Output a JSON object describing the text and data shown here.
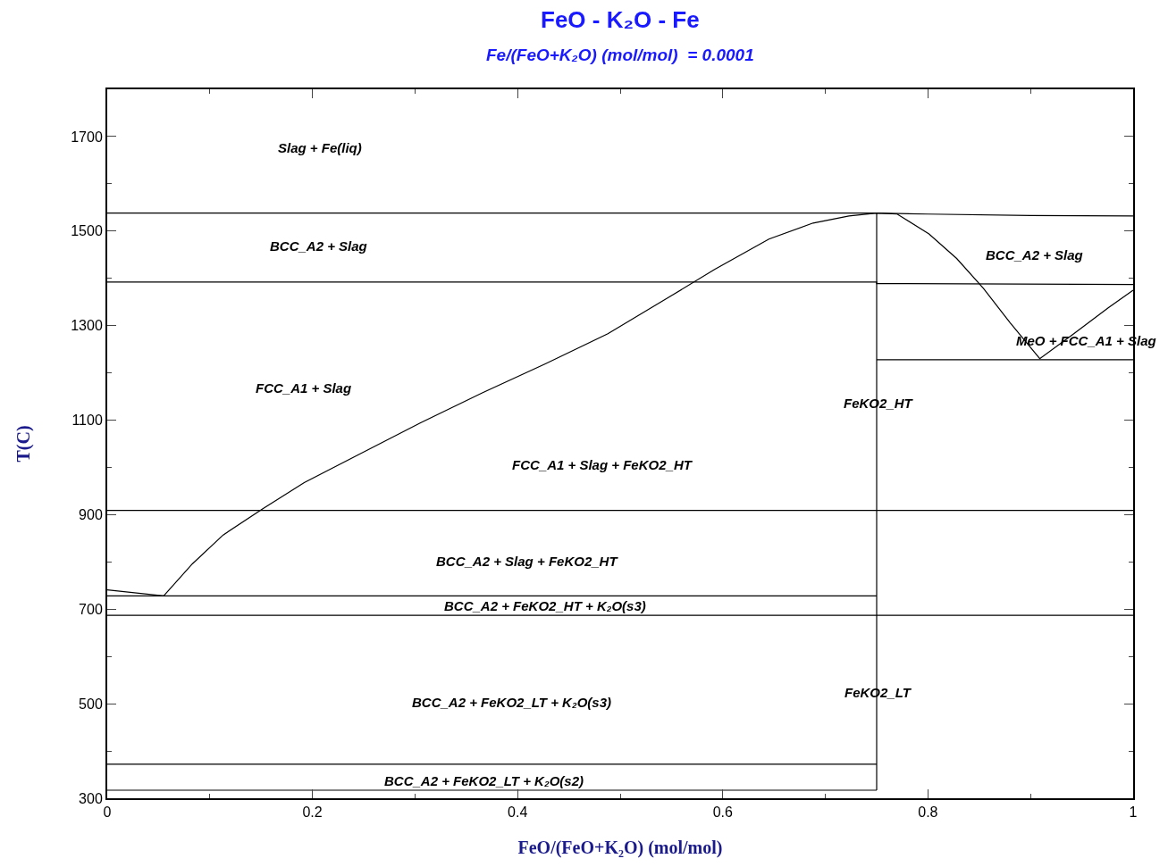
{
  "chart_data": {
    "type": "line",
    "title": "FeO - K₂O - Fe",
    "subtitle": "Fe/(FeO+K₂O) (mol/mol)  = 0.0001",
    "xlabel": "FeO/(FeO+K₂O) (mol/mol)",
    "ylabel": "T(C)",
    "xlim": [
      0,
      1
    ],
    "xticks": [
      0,
      0.2,
      0.4,
      0.6,
      0.8,
      1
    ],
    "ylim": [
      300,
      1800
    ],
    "yticks": [
      300,
      500,
      700,
      900,
      1100,
      1300,
      1500,
      1700
    ],
    "marker": "none",
    "line_style": "solid",
    "series": [
      {
        "color": "#000000",
        "x": [
          0,
          0.75,
          0.8,
          0.9,
          1
        ],
        "values": [
          1538,
          1538,
          1536,
          1533,
          1532
        ]
      },
      {
        "color": "#000000",
        "x": [
          0,
          0.75,
          0.75,
          1
        ],
        "values": [
          1392,
          1392,
          1389,
          1387
        ]
      },
      {
        "color": "#000000",
        "x": [
          0.75,
          1
        ],
        "values": [
          1228,
          1228
        ]
      },
      {
        "color": "#000000",
        "x": [
          0,
          1
        ],
        "values": [
          909,
          909
        ]
      },
      {
        "color": "#000000",
        "x": [
          0,
          0.75
        ],
        "values": [
          728,
          728
        ]
      },
      {
        "color": "#000000",
        "x": [
          0,
          1
        ],
        "values": [
          687,
          687
        ]
      },
      {
        "color": "#000000",
        "x": [
          0,
          0.75
        ],
        "values": [
          372,
          372
        ]
      },
      {
        "color": "#000000",
        "x": [
          0,
          0.75
        ],
        "values": [
          317,
          317
        ]
      },
      {
        "color": "#000000",
        "x": [
          0.75,
          0.75
        ],
        "values": [
          317,
          1538
        ]
      },
      {
        "color": "#000000",
        "x": [
          0,
          0.055,
          0.083,
          0.113,
          0.152,
          0.192,
          0.244,
          0.305,
          0.366,
          0.427,
          0.488,
          0.549,
          0.592,
          0.645,
          0.688,
          0.723,
          0.75,
          0.77,
          0.801,
          0.828,
          0.854,
          0.88,
          0.909,
          0.941,
          0.976,
          1.0
        ],
        "values": [
          741,
          728,
          796,
          857,
          913,
          968,
          1026,
          1094,
          1158,
          1219,
          1283,
          1362,
          1419,
          1483,
          1517,
          1532,
          1538,
          1536,
          1494,
          1442,
          1379,
          1306,
          1230,
          1281,
          1338,
          1375
        ]
      }
    ],
    "annotations": [
      "Slag + Fe(liq)",
      "BCC_A2 + Slag",
      "FCC_A1 + Slag",
      "FCC_A1 + Slag + FeKO2_HT",
      "BCC_A2 + Slag + FeKO2_HT",
      "BCC_A2 + FeKO2_HT + K₂O(s3)",
      "BCC_A2 + FeKO2_LT + K₂O(s3)",
      "BCC_A2 + FeKO2_LT + K₂O(s2)",
      "FeKO2_HT",
      "FeKO2_LT",
      "BCC_A2 + Slag",
      "MeO + FCC_A1 + Slag"
    ]
  }
}
